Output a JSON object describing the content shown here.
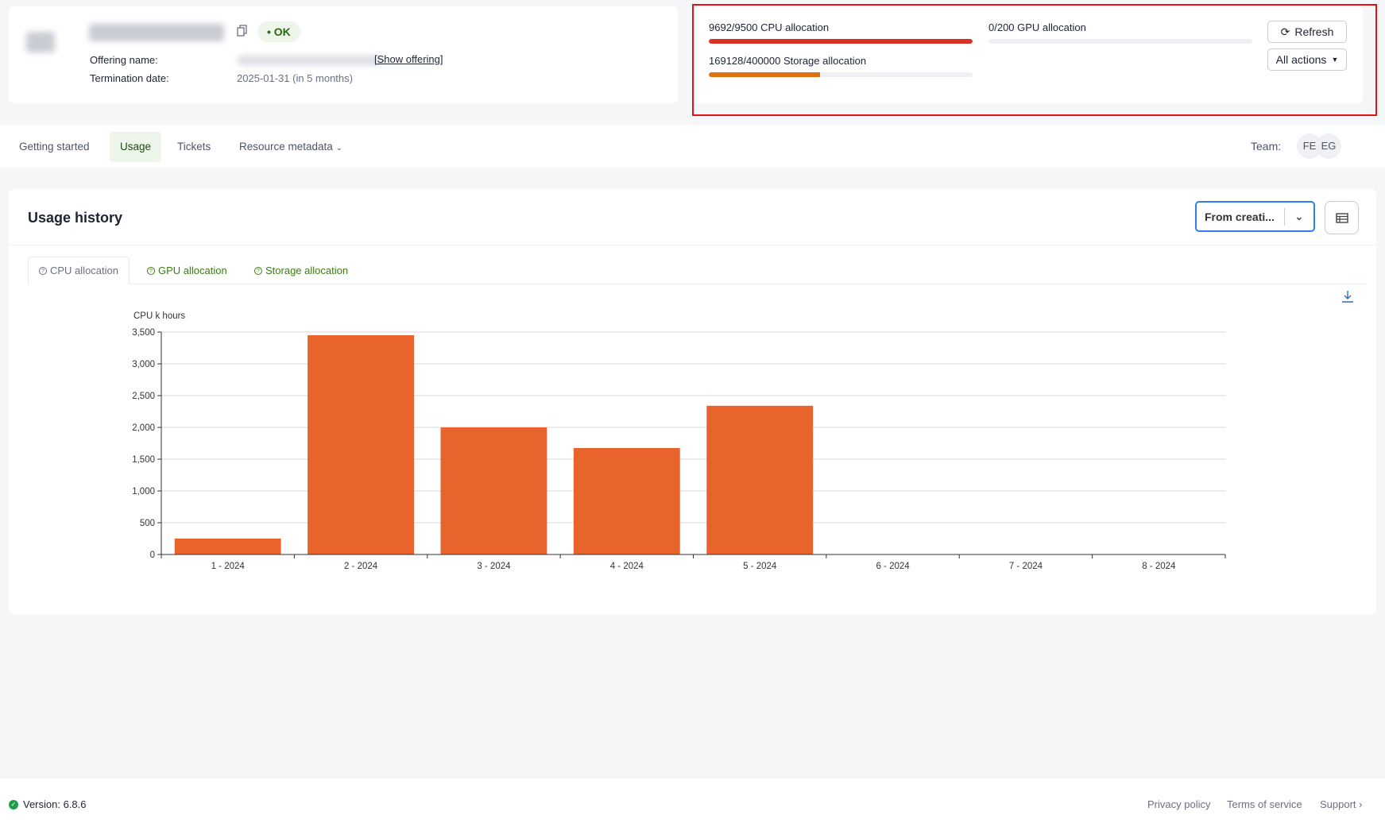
{
  "header": {
    "status": "OK",
    "offering_label": "Offering name:",
    "show_offering": "[Show offering]",
    "termination_label": "Termination date:",
    "termination_value": "2025-01-31 (in 5 months)"
  },
  "quotas": [
    {
      "label": "9692/9500 CPU allocation",
      "percent": 100,
      "color": "#dc3127"
    },
    {
      "label": "0/200 GPU allocation",
      "percent": 0,
      "color": "#dc3127"
    },
    {
      "label": "169128/400000 Storage allocation",
      "percent": 42.3,
      "color": "#e07010"
    }
  ],
  "actions": {
    "refresh": "Refresh",
    "all_actions": "All actions"
  },
  "tabs": [
    {
      "label": "Getting started"
    },
    {
      "label": "Usage",
      "active": true
    },
    {
      "label": "Tickets"
    },
    {
      "label": "Resource metadata"
    }
  ],
  "team": {
    "label": "Team:",
    "members": [
      "FE",
      "EG"
    ]
  },
  "usage": {
    "title": "Usage history",
    "period_select": "From creati...",
    "chart_tabs": [
      {
        "label": "CPU allocation",
        "active": true
      },
      {
        "label": "GPU allocation"
      },
      {
        "label": "Storage allocation"
      }
    ]
  },
  "chart_data": {
    "type": "bar",
    "ylabel": "CPU k hours",
    "categories": [
      "1 - 2024",
      "2 - 2024",
      "3 - 2024",
      "4 - 2024",
      "5 - 2024",
      "6 - 2024",
      "7 - 2024",
      "8 - 2024"
    ],
    "values": [
      250,
      3450,
      2000,
      1675,
      2340,
      0,
      0,
      0
    ],
    "ylim": [
      0,
      3500
    ],
    "yticks": [
      0,
      500,
      1000,
      1500,
      2000,
      2500,
      3000,
      3500
    ],
    "ytick_labels": [
      "0",
      "500",
      "1,000",
      "1,500",
      "2,000",
      "2,500",
      "3,000",
      "3,500"
    ],
    "grid": true,
    "color": "#e9632d"
  },
  "footer": {
    "version": "Version: 6.8.6",
    "links": [
      "Privacy policy",
      "Terms of service",
      "Support"
    ]
  }
}
